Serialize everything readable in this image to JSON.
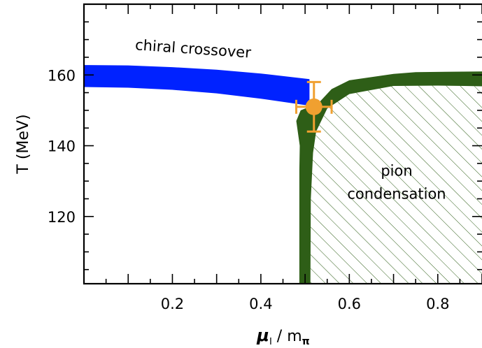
{
  "chart_data": {
    "type": "area",
    "title": "",
    "xlabel": {
      "symbol": "μ",
      "subscript": "I",
      "slash": "/",
      "denominator": "m",
      "denominator_subscript": "π"
    },
    "ylabel": "T (MeV)",
    "xlim": [
      0.0,
      0.9
    ],
    "ylim": [
      101,
      180
    ],
    "xticks": [
      {
        "value": 0.2,
        "label": "0.2"
      },
      {
        "value": 0.4,
        "label": "0.4"
      },
      {
        "value": 0.6,
        "label": "0.6"
      },
      {
        "value": 0.8,
        "label": "0.8"
      }
    ],
    "yticks": [
      {
        "value": 120,
        "label": "120"
      },
      {
        "value": 140,
        "label": "140"
      },
      {
        "value": 160,
        "label": "160"
      }
    ],
    "grid": false,
    "series": [
      {
        "name": "chiral crossover",
        "color": "#0022ff",
        "upper": [
          [
            0.0,
            162.8
          ],
          [
            0.1,
            162.7
          ],
          [
            0.2,
            162.2
          ],
          [
            0.3,
            161.5
          ],
          [
            0.4,
            160.4
          ],
          [
            0.51,
            158.8
          ]
        ],
        "lower": [
          [
            0.0,
            156.6
          ],
          [
            0.1,
            156.4
          ],
          [
            0.2,
            155.8
          ],
          [
            0.3,
            154.8
          ],
          [
            0.4,
            153.3
          ],
          [
            0.51,
            151.3
          ]
        ]
      },
      {
        "name": "",
        "color": "#2e5e17",
        "polygon": [
          [
            0.487,
            101.0
          ],
          [
            0.487,
            133.0
          ],
          [
            0.488,
            140.0
          ],
          [
            0.48,
            147.0
          ],
          [
            0.49,
            150.0
          ],
          [
            0.53,
            152.0
          ],
          [
            0.56,
            156.0
          ],
          [
            0.6,
            158.5
          ],
          [
            0.7,
            160.3
          ],
          [
            0.75,
            160.8
          ],
          [
            0.9,
            161.0
          ],
          [
            0.9,
            156.8
          ],
          [
            0.86,
            156.9
          ],
          [
            0.8,
            157.0
          ],
          [
            0.7,
            156.9
          ],
          [
            0.6,
            154.6
          ],
          [
            0.55,
            150.5
          ],
          [
            0.525,
            144.0
          ],
          [
            0.518,
            138.0
          ],
          [
            0.513,
            125.0
          ],
          [
            0.512,
            101.0
          ]
        ]
      },
      {
        "name": "pion condensation",
        "color": "#2e5e17",
        "fill": "hatch",
        "polygon": [
          [
            0.512,
            101.0
          ],
          [
            0.513,
            125.0
          ],
          [
            0.518,
            138.0
          ],
          [
            0.525,
            144.0
          ],
          [
            0.55,
            150.5
          ],
          [
            0.6,
            154.6
          ],
          [
            0.7,
            156.9
          ],
          [
            0.8,
            157.0
          ],
          [
            0.9,
            156.8
          ],
          [
            0.9,
            101.0
          ]
        ]
      }
    ],
    "point": {
      "x": 0.52,
      "y": 151.0,
      "xerr": 0.04,
      "yerr": 7.0,
      "color": "#f0a030"
    },
    "annotations": [
      {
        "text": "chiral crossover",
        "x": 0.246,
        "y": 166.0,
        "rotation_deg": 4
      },
      {
        "text": "pion",
        "x": 0.707,
        "y": 131.5
      },
      {
        "text": "condensation",
        "x": 0.707,
        "y": 125.0
      }
    ]
  }
}
